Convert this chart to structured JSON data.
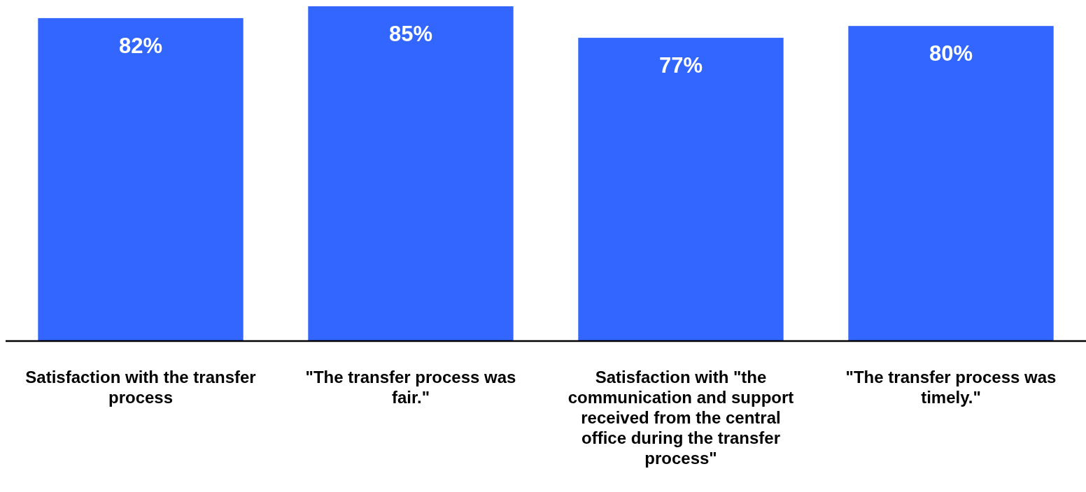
{
  "chart_data": {
    "type": "bar",
    "categories": [
      "Satisfaction with the transfer process",
      "\"The transfer process was fair.\"",
      "Satisfaction with \"the communication and support received from the central office during the transfer process\"",
      "\"The transfer process was timely.\""
    ],
    "values": [
      82,
      85,
      77,
      80
    ],
    "color": "#3366ff",
    "value_labels": [
      "82%",
      "85%",
      "77%",
      "80%"
    ]
  }
}
